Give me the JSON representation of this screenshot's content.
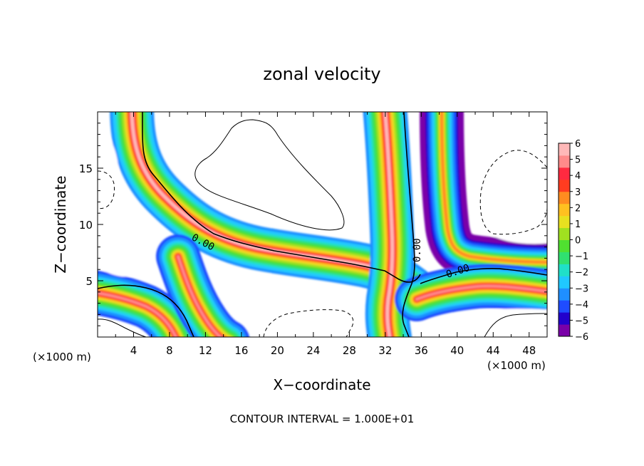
{
  "chart_data": {
    "type": "heatmap",
    "title": "zonal velocity",
    "xlabel": "X−coordinate",
    "ylabel": "Z−coordinate",
    "x_unit_left": "(×1000 m)",
    "x_unit_right": "(×1000 m)",
    "xlim": [
      0,
      50
    ],
    "ylim": [
      0,
      20
    ],
    "x_ticks": [
      4,
      8,
      12,
      16,
      20,
      24,
      28,
      32,
      36,
      40,
      44,
      48
    ],
    "y_ticks": [
      5,
      10,
      15
    ],
    "footer": "CONTOUR INTERVAL = 1.000E+01",
    "colorbar": {
      "min": -6,
      "max": 6,
      "tick_labels": [
        "6",
        "5",
        "4",
        "3",
        "2",
        "1",
        "0",
        "−1",
        "−2",
        "−3",
        "−4",
        "−5",
        "−6"
      ],
      "colors": [
        "#7a00a8",
        "#2200cc",
        "#1f4cff",
        "#1f8fff",
        "#20c8ff",
        "#20e0c8",
        "#30e070",
        "#50e030",
        "#a0e020",
        "#e8e020",
        "#ffc020",
        "#ff8c20",
        "#ff3c20",
        "#ff2a40",
        "#ff8a8a",
        "#ffb8b8"
      ]
    },
    "contour_labels": [
      "0.00",
      "0.00",
      "0.00"
    ]
  }
}
